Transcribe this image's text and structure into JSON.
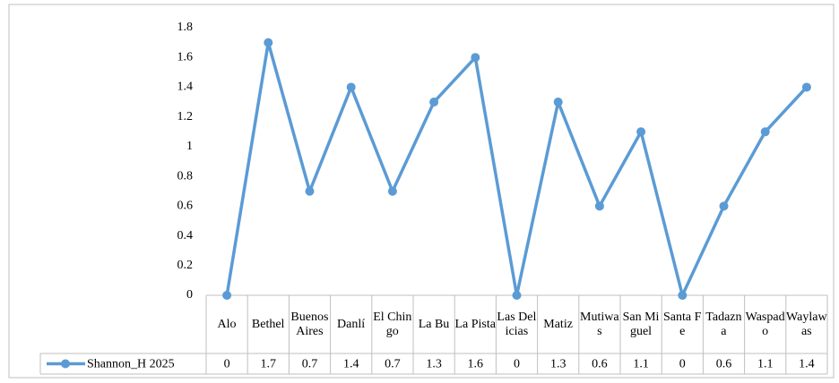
{
  "chart_data": {
    "type": "line",
    "categories": [
      "Alo",
      "Bethel",
      "Buenos Aires",
      "Danlí",
      "El Chingo",
      "La Bu",
      "La Pista",
      "Las Delicias",
      "Matiz",
      "Mutiwas",
      "San Miguel",
      "Santa Fe",
      "Tadazna",
      "Waspado",
      "Waylawas"
    ],
    "series": [
      {
        "name": "Shannon_H 2025",
        "color": "#5b9bd5",
        "values": [
          0,
          1.7,
          0.7,
          1.4,
          0.7,
          1.3,
          1.6,
          0,
          1.3,
          0.6,
          1.1,
          0,
          0.6,
          1.1,
          1.4
        ]
      }
    ],
    "ylim": [
      0,
      1.8
    ],
    "yticks": [
      0,
      0.2,
      0.4,
      0.6,
      0.8,
      1,
      1.2,
      1.4,
      1.6,
      1.8
    ],
    "grid": false,
    "data_table": true
  }
}
